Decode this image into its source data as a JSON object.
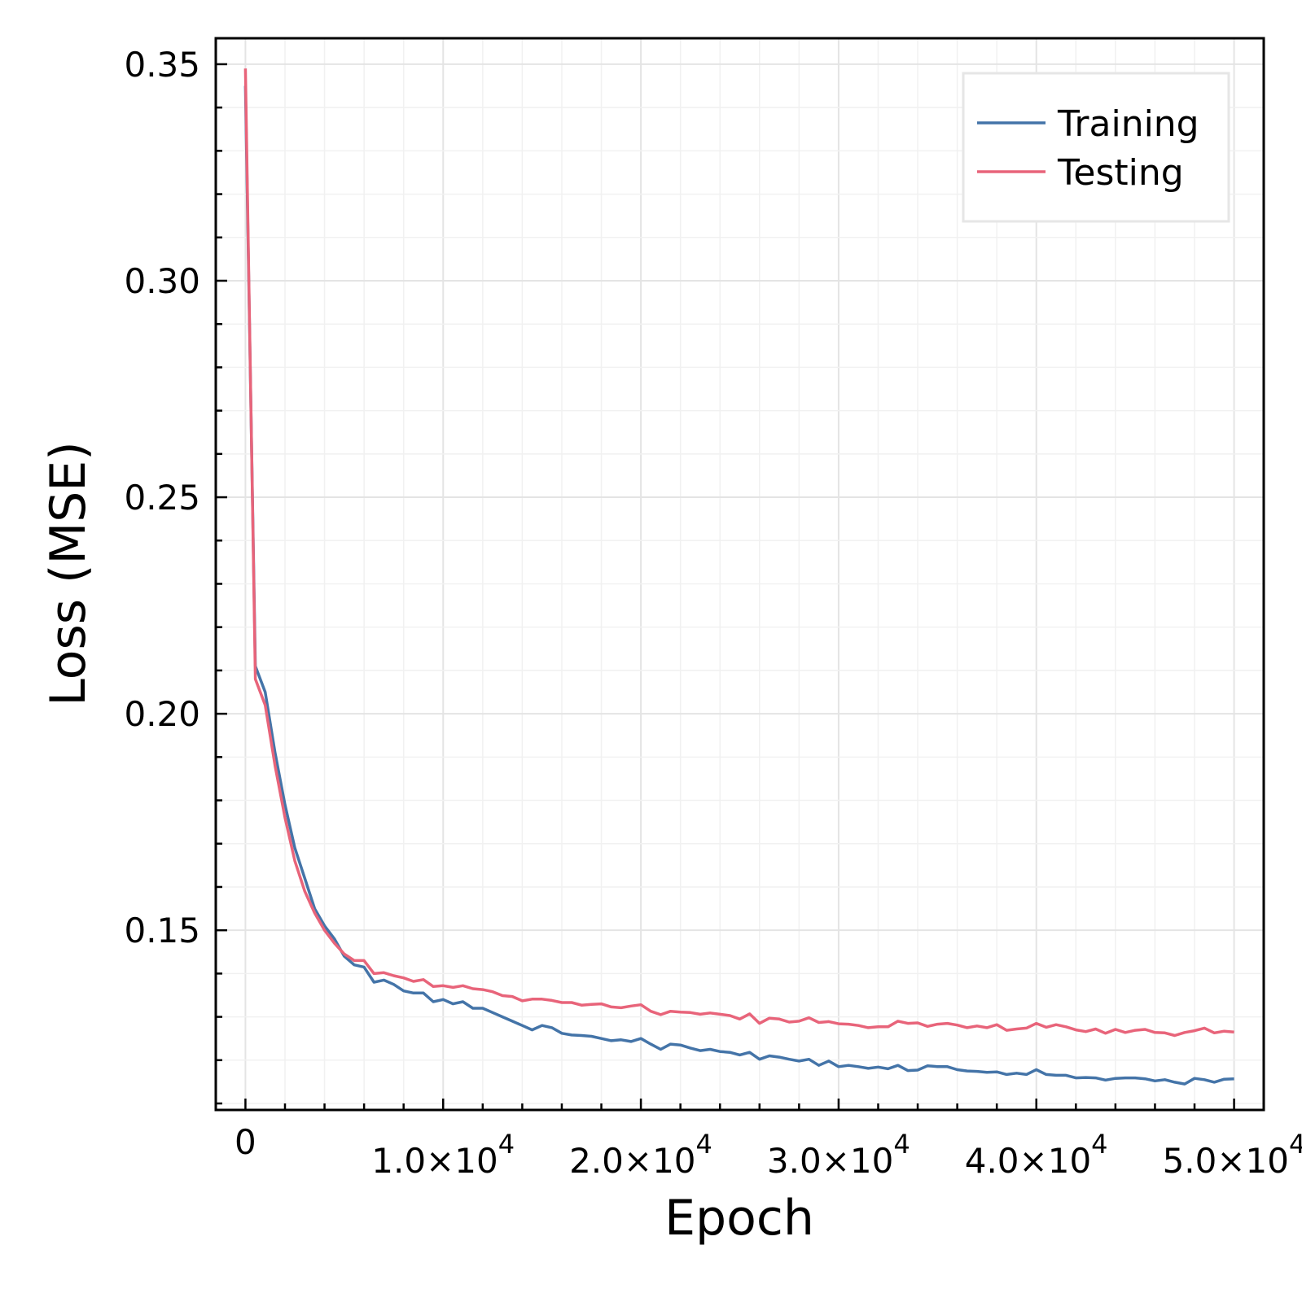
{
  "chart_data": {
    "type": "line",
    "xlabel": "Epoch",
    "ylabel": "Loss (MSE)",
    "xlim": [
      -1500,
      51500
    ],
    "ylim": [
      0.1085,
      0.356
    ],
    "grid": true,
    "legend_position": "top-right",
    "x_ticks": [
      {
        "value": 0,
        "mantissa": "0",
        "exponent": ""
      },
      {
        "value": 10000,
        "mantissa": "1.0×10",
        "exponent": "4"
      },
      {
        "value": 20000,
        "mantissa": "2.0×10",
        "exponent": "4"
      },
      {
        "value": 30000,
        "mantissa": "3.0×10",
        "exponent": "4"
      },
      {
        "value": 40000,
        "mantissa": "4.0×10",
        "exponent": "4"
      },
      {
        "value": 50000,
        "mantissa": "5.0×10",
        "exponent": "4"
      }
    ],
    "y_ticks": [
      {
        "value": 0.15,
        "label": "0.15"
      },
      {
        "value": 0.2,
        "label": "0.20"
      },
      {
        "value": 0.25,
        "label": "0.25"
      },
      {
        "value": 0.3,
        "label": "0.30"
      },
      {
        "value": 0.35,
        "label": "0.35"
      }
    ],
    "series": [
      {
        "name": "Training",
        "color": "#4474a8",
        "x": [
          0,
          500,
          1000,
          1500,
          2000,
          2500,
          3000,
          3500,
          4000,
          4500,
          5000,
          5500,
          6000,
          6500,
          7000,
          7500,
          8000,
          8500,
          9000,
          9500,
          10000,
          10500,
          11000,
          11500,
          12000,
          12500,
          13000,
          13500,
          14000,
          14500,
          15000,
          15500,
          16000,
          16500,
          17000,
          17500,
          18000,
          18500,
          19000,
          19500,
          20000,
          20500,
          21000,
          21500,
          22000,
          22500,
          23000,
          23500,
          24000,
          24500,
          25000,
          25500,
          26000,
          26500,
          27000,
          27500,
          28000,
          28500,
          29000,
          29500,
          30000,
          30500,
          31000,
          31500,
          32000,
          32500,
          33000,
          33500,
          34000,
          34500,
          35000,
          35500,
          36000,
          36500,
          37000,
          37500,
          38000,
          38500,
          39000,
          39500,
          40000,
          40500,
          41000,
          41500,
          42000,
          42500,
          43000,
          43500,
          44000,
          44500,
          45000,
          45500,
          46000,
          46500,
          47000,
          47500,
          48000,
          48500,
          49000,
          49500,
          50000
        ],
        "y": [
          0.345,
          0.211,
          0.205,
          0.191,
          0.179,
          0.169,
          0.162,
          0.155,
          0.151,
          0.148,
          0.144,
          0.142,
          0.1415,
          0.138,
          0.1385,
          0.1375,
          0.136,
          0.1355,
          0.1355,
          0.1335,
          0.134,
          0.133,
          0.1335,
          0.132,
          0.132,
          0.131,
          0.13,
          0.129,
          0.128,
          0.127,
          0.128,
          0.1275,
          0.1262,
          0.1258,
          0.1257,
          0.1255,
          0.125,
          0.1245,
          0.1247,
          0.1243,
          0.125,
          0.1237,
          0.1225,
          0.1237,
          0.1235,
          0.1228,
          0.1222,
          0.1225,
          0.122,
          0.1218,
          0.1212,
          0.1218,
          0.1202,
          0.121,
          0.1207,
          0.1202,
          0.1198,
          0.1202,
          0.1188,
          0.1198,
          0.1185,
          0.1188,
          0.1185,
          0.1181,
          0.1184,
          0.118,
          0.1188,
          0.1176,
          0.1177,
          0.1187,
          0.1185,
          0.1185,
          0.1178,
          0.1175,
          0.1174,
          0.1172,
          0.1173,
          0.1167,
          0.117,
          0.1167,
          0.1178,
          0.1167,
          0.1165,
          0.1165,
          0.1159,
          0.116,
          0.1159,
          0.1154,
          0.1158,
          0.1159,
          0.1159,
          0.1157,
          0.1152,
          0.1155,
          0.1149,
          0.1145,
          0.1158,
          0.1155,
          0.1149,
          0.1156,
          0.1157
        ]
      },
      {
        "name": "Testing",
        "color": "#e8647a",
        "x": [
          0,
          500,
          1000,
          1500,
          2000,
          2500,
          3000,
          3500,
          4000,
          4500,
          5000,
          5500,
          6000,
          6500,
          7000,
          7500,
          8000,
          8500,
          9000,
          9500,
          10000,
          10500,
          11000,
          11500,
          12000,
          12500,
          13000,
          13500,
          14000,
          14500,
          15000,
          15500,
          16000,
          16500,
          17000,
          17500,
          18000,
          18500,
          19000,
          19500,
          20000,
          20500,
          21000,
          21500,
          22000,
          22500,
          23000,
          23500,
          24000,
          24500,
          25000,
          25500,
          26000,
          26500,
          27000,
          27500,
          28000,
          28500,
          29000,
          29500,
          30000,
          30500,
          31000,
          31500,
          32000,
          32500,
          33000,
          33500,
          34000,
          34500,
          35000,
          35500,
          36000,
          36500,
          37000,
          37500,
          38000,
          38500,
          39000,
          39500,
          40000,
          40500,
          41000,
          41500,
          42000,
          42500,
          43000,
          43500,
          44000,
          44500,
          45000,
          45500,
          46000,
          46500,
          47000,
          47500,
          48000,
          48500,
          49000,
          49500,
          50000
        ],
        "y": [
          0.349,
          0.208,
          0.202,
          0.188,
          0.176,
          0.166,
          0.159,
          0.154,
          0.15,
          0.147,
          0.1445,
          0.143,
          0.143,
          0.14,
          0.1402,
          0.1395,
          0.139,
          0.1382,
          0.1386,
          0.137,
          0.1372,
          0.1368,
          0.1372,
          0.1365,
          0.1363,
          0.1358,
          0.1349,
          0.1347,
          0.1337,
          0.1341,
          0.1341,
          0.1338,
          0.1333,
          0.1333,
          0.1327,
          0.1329,
          0.133,
          0.1323,
          0.1321,
          0.1325,
          0.1328,
          0.1313,
          0.1305,
          0.1313,
          0.1311,
          0.131,
          0.1306,
          0.1309,
          0.1306,
          0.1303,
          0.1295,
          0.1307,
          0.1285,
          0.1297,
          0.1295,
          0.1288,
          0.129,
          0.1298,
          0.1287,
          0.1289,
          0.1284,
          0.1283,
          0.128,
          0.1275,
          0.1277,
          0.1277,
          0.129,
          0.1285,
          0.1286,
          0.1278,
          0.1283,
          0.1285,
          0.1281,
          0.1275,
          0.1279,
          0.1275,
          0.1282,
          0.1269,
          0.1272,
          0.1274,
          0.1285,
          0.1276,
          0.1282,
          0.1277,
          0.127,
          0.1266,
          0.1272,
          0.1262,
          0.1271,
          0.1264,
          0.1269,
          0.1271,
          0.1264,
          0.1263,
          0.1257,
          0.1264,
          0.1268,
          0.1274,
          0.1263,
          0.1267,
          0.1265
        ]
      }
    ]
  }
}
